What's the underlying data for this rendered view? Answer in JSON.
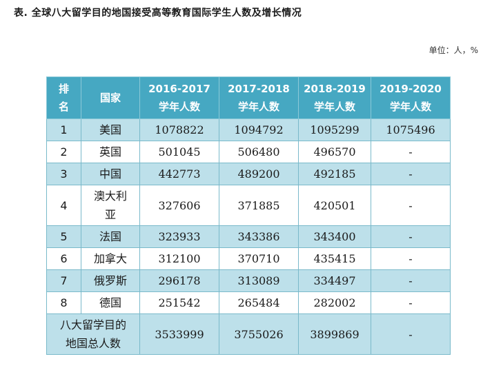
{
  "caption": "表.  全球八大留学目的地国接受高等教育国际学生人数及增长情况",
  "unit": "单位：人，%",
  "headers": {
    "rank": "排名",
    "country": "国家",
    "y2016": "2016-2017学年人数",
    "y2017": "2017-2018学年人数",
    "y2018": "2018-2019学年人数",
    "y2019": "2019-2020学年人数"
  },
  "rows": [
    {
      "rank": "1",
      "country": "美国",
      "v1": "1078822",
      "v2": "1094792",
      "v3": "1095299",
      "v4": "1075496"
    },
    {
      "rank": "2",
      "country": "英国",
      "v1": "501045",
      "v2": "506480",
      "v3": "496570",
      "v4": "-"
    },
    {
      "rank": "3",
      "country": "中国",
      "v1": "442773",
      "v2": "489200",
      "v3": "492185",
      "v4": "-"
    },
    {
      "rank": "4",
      "country": "澳大利亚",
      "v1": "327606",
      "v2": "371885",
      "v3": "420501",
      "v4": "-"
    },
    {
      "rank": "5",
      "country": "法国",
      "v1": "323933",
      "v2": "343386",
      "v3": "343400",
      "v4": "-"
    },
    {
      "rank": "6",
      "country": "加拿大",
      "v1": "312100",
      "v2": "370710",
      "v3": "435415",
      "v4": "-"
    },
    {
      "rank": "7",
      "country": "俄罗斯",
      "v1": "296178",
      "v2": "313089",
      "v3": "334497",
      "v4": "-"
    },
    {
      "rank": "8",
      "country": "德国",
      "v1": "251542",
      "v2": "265484",
      "v3": "282002",
      "v4": "-"
    }
  ],
  "total": {
    "label": "八大留学目的地国总人数",
    "v1": "3533999",
    "v2": "3755026",
    "v3": "3899869",
    "v4": "-"
  }
}
